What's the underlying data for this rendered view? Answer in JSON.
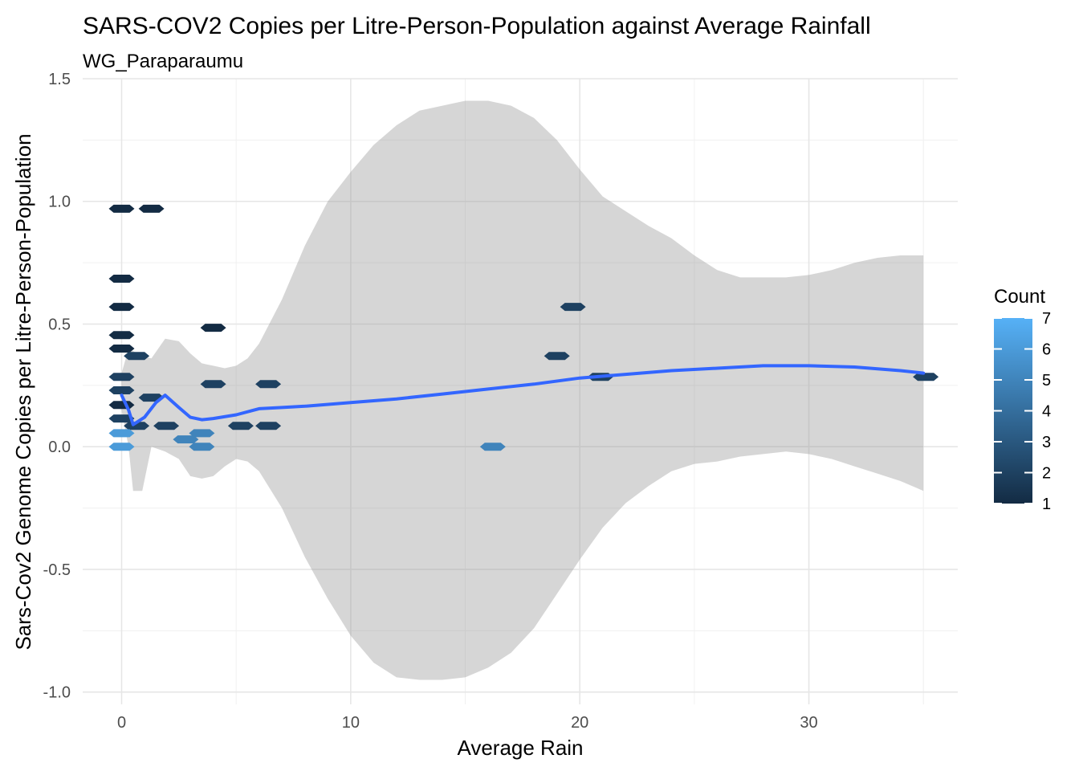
{
  "chart_data": {
    "type": "heatmap",
    "title": "SARS-COV2 Copies per Litre-Person-Population against Average Rainfall",
    "subtitle": "WG_Paraparaumu",
    "xlabel": "Average Rain",
    "ylabel": "Sars-Cov2 Genome Copies per Litre-Person-Population",
    "xlim": [
      -1.7,
      36.5
    ],
    "ylim": [
      -1.05,
      1.5
    ],
    "x_ticks": [
      "0",
      "10",
      "20",
      "30"
    ],
    "x_tick_values": [
      0,
      10,
      20,
      30
    ],
    "y_ticks": [
      "-1.0",
      "-0.5",
      "0.0",
      "0.5",
      "1.0",
      "1.5"
    ],
    "y_tick_values": [
      -1.0,
      -0.5,
      0.0,
      0.5,
      1.0,
      1.5
    ],
    "grid": true,
    "legend": {
      "title": "Count",
      "placement": "right",
      "ticks": [
        "1",
        "2",
        "3",
        "4",
        "5",
        "6",
        "7"
      ],
      "min": 1,
      "max": 7,
      "low_color": "#132B43",
      "high_color": "#56B1F7"
    },
    "hex_bins": [
      {
        "x": 0,
        "y": 0.97,
        "count": 1
      },
      {
        "x": 1.3,
        "y": 0.97,
        "count": 1
      },
      {
        "x": 0,
        "y": 0.685,
        "count": 1
      },
      {
        "x": 0,
        "y": 0.57,
        "count": 1
      },
      {
        "x": 0,
        "y": 0.455,
        "count": 1
      },
      {
        "x": 0,
        "y": 0.4,
        "count": 1
      },
      {
        "x": 0.65,
        "y": 0.37,
        "count": 2
      },
      {
        "x": 0,
        "y": 0.285,
        "count": 2
      },
      {
        "x": 0,
        "y": 0.23,
        "count": 2
      },
      {
        "x": 0,
        "y": 0.17,
        "count": 1
      },
      {
        "x": 0,
        "y": 0.115,
        "count": 2
      },
      {
        "x": 1.3,
        "y": 0.2,
        "count": 2
      },
      {
        "x": 0.65,
        "y": 0.085,
        "count": 2
      },
      {
        "x": 1.95,
        "y": 0.085,
        "count": 2
      },
      {
        "x": 4.0,
        "y": 0.485,
        "count": 1
      },
      {
        "x": 4.0,
        "y": 0.255,
        "count": 2
      },
      {
        "x": 6.4,
        "y": 0.255,
        "count": 2
      },
      {
        "x": 5.2,
        "y": 0.085,
        "count": 2
      },
      {
        "x": 6.4,
        "y": 0.085,
        "count": 2
      },
      {
        "x": 0,
        "y": 0.055,
        "count": 6
      },
      {
        "x": 0,
        "y": 0.0,
        "count": 6
      },
      {
        "x": 2.8,
        "y": 0.03,
        "count": 5
      },
      {
        "x": 3.5,
        "y": 0.055,
        "count": 5
      },
      {
        "x": 3.5,
        "y": 0.0,
        "count": 5
      },
      {
        "x": 16.2,
        "y": 0.0,
        "count": 5
      },
      {
        "x": 19.0,
        "y": 0.37,
        "count": 2
      },
      {
        "x": 19.7,
        "y": 0.57,
        "count": 2
      },
      {
        "x": 20.9,
        "y": 0.285,
        "count": 2
      },
      {
        "x": 35.1,
        "y": 0.285,
        "count": 2
      }
    ],
    "smooth_line": {
      "color": "#3366FF",
      "x": [
        0,
        0.3,
        0.5,
        1.0,
        1.5,
        1.9,
        2.5,
        3.0,
        3.5,
        4.0,
        5.0,
        6.0,
        7.0,
        8.0,
        10.0,
        12.0,
        14.0,
        16.0,
        18.0,
        20.0,
        22.0,
        24.0,
        26.0,
        28.0,
        30.0,
        32.0,
        34.0,
        35.0
      ],
      "y": [
        0.21,
        0.15,
        0.09,
        0.12,
        0.18,
        0.21,
        0.16,
        0.12,
        0.11,
        0.115,
        0.13,
        0.155,
        0.16,
        0.165,
        0.18,
        0.195,
        0.215,
        0.235,
        0.255,
        0.28,
        0.295,
        0.31,
        0.32,
        0.33,
        0.33,
        0.325,
        0.31,
        0.3
      ]
    },
    "confidence_band": {
      "color": "#999999",
      "opacity": 0.4,
      "x": [
        0,
        0.3,
        0.5,
        0.9,
        1.3,
        1.9,
        2.5,
        3.0,
        3.5,
        4.0,
        4.5,
        5.0,
        5.5,
        6.0,
        7.0,
        8.0,
        9.0,
        10.0,
        11.0,
        12.0,
        13.0,
        14.0,
        15.0,
        16.0,
        17.0,
        18.0,
        19.0,
        20.0,
        21.0,
        22.0,
        23.0,
        24.0,
        25.0,
        26.0,
        27.0,
        28.0,
        29.0,
        30.0,
        31.0,
        32.0,
        33.0,
        34.0,
        35.0
      ],
      "upper": [
        0.3,
        0.4,
        0.39,
        0.37,
        0.36,
        0.44,
        0.43,
        0.38,
        0.34,
        0.33,
        0.32,
        0.33,
        0.36,
        0.42,
        0.6,
        0.82,
        1.0,
        1.12,
        1.23,
        1.31,
        1.37,
        1.39,
        1.41,
        1.41,
        1.39,
        1.34,
        1.25,
        1.13,
        1.02,
        0.96,
        0.9,
        0.85,
        0.78,
        0.72,
        0.69,
        0.69,
        0.69,
        0.7,
        0.72,
        0.75,
        0.77,
        0.78,
        0.78
      ],
      "lower": [
        0.15,
        0.0,
        -0.18,
        -0.18,
        0.0,
        -0.02,
        -0.05,
        -0.12,
        -0.13,
        -0.12,
        -0.08,
        -0.05,
        -0.06,
        -0.1,
        -0.25,
        -0.45,
        -0.62,
        -0.77,
        -0.88,
        -0.94,
        -0.95,
        -0.95,
        -0.94,
        -0.9,
        -0.84,
        -0.74,
        -0.6,
        -0.46,
        -0.33,
        -0.23,
        -0.16,
        -0.1,
        -0.07,
        -0.06,
        -0.04,
        -0.03,
        -0.02,
        -0.03,
        -0.05,
        -0.08,
        -0.11,
        -0.14,
        -0.18
      ]
    }
  }
}
